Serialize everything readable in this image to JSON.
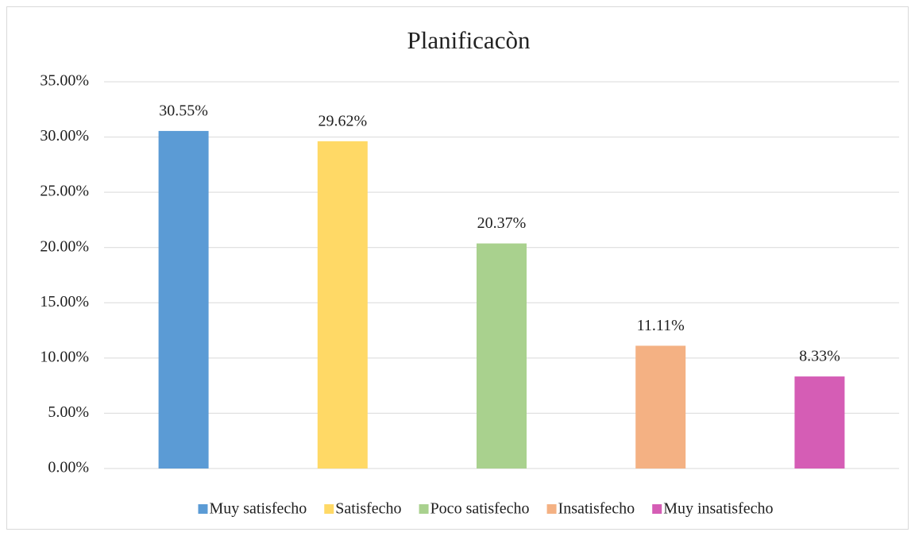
{
  "chart_data": {
    "type": "bar",
    "title": "Planificacòn",
    "categories": [
      "Muy satisfecho",
      "Satisfecho",
      "Poco satisfecho",
      "Insatisfecho",
      "Muy insatisfecho"
    ],
    "values": [
      30.55,
      29.62,
      20.37,
      11.11,
      8.33
    ],
    "value_labels": [
      "30.55%",
      "29.62%",
      "20.37%",
      "11.11%",
      "8.33%"
    ],
    "colors": [
      "#5b9bd5",
      "#ffd966",
      "#a9d18e",
      "#f4b183",
      "#d55db5"
    ],
    "ylim": [
      0,
      35
    ],
    "yticks": [
      {
        "value": 0,
        "label": "0.00%"
      },
      {
        "value": 5,
        "label": "5.00%"
      },
      {
        "value": 10,
        "label": "10.00%"
      },
      {
        "value": 15,
        "label": "15.00%"
      },
      {
        "value": 20,
        "label": "20.00%"
      },
      {
        "value": 25,
        "label": "25.00%"
      },
      {
        "value": 30,
        "label": "30.00%"
      },
      {
        "value": 35,
        "label": "35.00%"
      }
    ],
    "grid": true,
    "legend": "bottom"
  }
}
